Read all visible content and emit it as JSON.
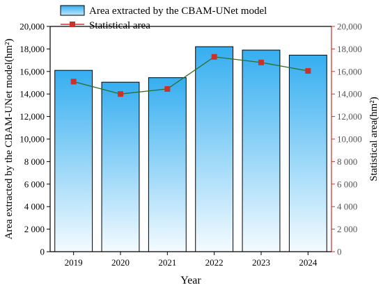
{
  "chart_data": {
    "type": "bar+line",
    "categories": [
      "2019",
      "2020",
      "2021",
      "2022",
      "2023",
      "2024"
    ],
    "series": [
      {
        "name": "Area extracted by the CBAM-UNet model",
        "kind": "bar",
        "axis": "left",
        "values": [
          16100,
          15050,
          15450,
          18200,
          17900,
          17450
        ],
        "color_top": "#35aef0",
        "color_bottom": "#f4fbff"
      },
      {
        "name": "Statistical area",
        "kind": "line",
        "axis": "right",
        "values": [
          15100,
          14000,
          14450,
          17300,
          16800,
          16050
        ],
        "line_color": "#2f6b2a",
        "marker_color": "#c8322a"
      }
    ],
    "xlabel": "Year",
    "ylabel_left": "Area extracted by the CBAM-UNet model(hm²)",
    "ylabel_right": "Statistical area(hm²)",
    "ylim_left": [
      0,
      20000
    ],
    "ylim_right": [
      0,
      20000
    ],
    "yticks_left": [
      "0",
      "2 000",
      "4 000",
      "6 000",
      "8 000",
      "10,000",
      "12,000",
      "14,000",
      "16,000",
      "18,000",
      "20,000"
    ],
    "yticks_right": [
      "0",
      "2 000",
      "4 000",
      "6 000",
      "8 000",
      "10,000",
      "12,000",
      "14,000",
      "16,000",
      "18,000",
      "20,000"
    ],
    "left_axis_color": "#000000",
    "right_axis_color": "#c8322a",
    "grid": false,
    "legend_position": "top"
  }
}
